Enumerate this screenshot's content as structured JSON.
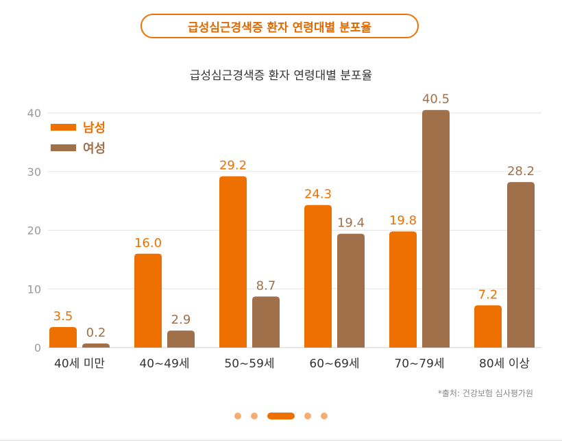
{
  "header": {
    "pill_title": "급성심근경색증 환자 연령대별 분포율"
  },
  "source_note": "*출처: 건강보험 심사평가원",
  "pagination": {
    "count": 5,
    "active_index": 2
  },
  "colors": {
    "male": "#ee7000",
    "female": "#a0704a",
    "accent": "#ee7000",
    "grid": "#e6e6e6"
  },
  "chart_data": {
    "type": "bar",
    "title": "급성심근경색증 환자 연령대별 분포율",
    "categories": [
      "40세 미만",
      "40∼49세",
      "50∼59세",
      "60∼69세",
      "70∼79세",
      "80세 이상"
    ],
    "series": [
      {
        "name": "남성",
        "values": [
          3.5,
          16.0,
          29.2,
          24.3,
          19.8,
          7.2
        ]
      },
      {
        "name": "여성",
        "values": [
          0.2,
          2.9,
          8.7,
          19.4,
          40.5,
          28.2
        ]
      }
    ],
    "value_labels": [
      [
        "3.5",
        "16.0",
        "29.2",
        "24.3",
        "19.8",
        "7.2"
      ],
      [
        "0.2",
        "2.9",
        "8.7",
        "19.4",
        "40.5",
        "28.2"
      ]
    ],
    "yticks": [
      0,
      10,
      20,
      30,
      40
    ],
    "ylim": [
      0,
      40.5
    ],
    "xlabel": "",
    "ylabel": "",
    "grid": true,
    "legend": "top-left"
  }
}
